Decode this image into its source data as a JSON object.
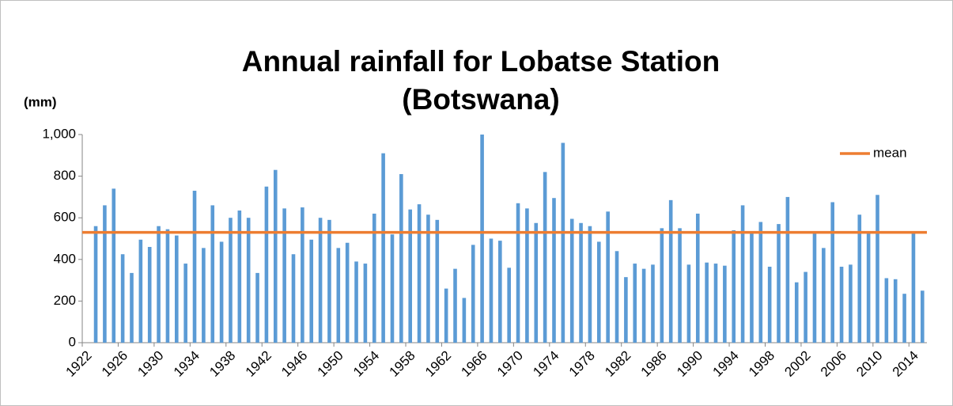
{
  "chart_data": {
    "type": "bar",
    "title": [
      "Annual rainfall for Lobatse Station",
      "(Botswana)"
    ],
    "y_label": "(mm)",
    "categories": [
      "1922",
      null,
      null,
      null,
      "1926",
      null,
      null,
      null,
      "1930",
      null,
      null,
      null,
      "1934",
      null,
      null,
      null,
      "1938",
      null,
      null,
      null,
      "1942",
      null,
      null,
      null,
      "1946",
      null,
      null,
      null,
      "1950",
      null,
      null,
      null,
      "1954",
      null,
      null,
      null,
      "1958",
      null,
      null,
      null,
      "1962",
      null,
      null,
      null,
      "1966",
      null,
      null,
      null,
      "1970",
      null,
      null,
      null,
      "1974",
      null,
      null,
      null,
      "1978",
      null,
      null,
      null,
      "1982",
      null,
      null,
      null,
      "1986",
      null,
      null,
      null,
      "1990",
      null,
      null,
      null,
      "1994",
      null,
      null,
      null,
      "1998",
      null,
      null,
      null,
      "2002",
      null,
      null,
      null,
      "2006",
      null,
      null,
      null,
      "2010",
      null,
      null,
      null,
      "2014",
      null
    ],
    "values": [
      null,
      560,
      660,
      740,
      425,
      335,
      495,
      460,
      560,
      545,
      515,
      380,
      730,
      455,
      660,
      485,
      600,
      635,
      600,
      335,
      750,
      830,
      645,
      425,
      650,
      495,
      600,
      590,
      455,
      480,
      390,
      380,
      620,
      910,
      520,
      810,
      640,
      665,
      615,
      590,
      260,
      355,
      215,
      470,
      1000,
      500,
      490,
      360,
      670,
      645,
      575,
      820,
      695,
      960,
      595,
      575,
      560,
      485,
      630,
      440,
      315,
      380,
      355,
      375,
      550,
      685,
      550,
      375,
      620,
      385,
      380,
      370,
      540,
      660,
      530,
      580,
      365,
      570,
      700,
      290,
      340,
      530,
      455,
      675,
      365,
      375,
      615,
      530,
      710,
      310,
      305,
      235,
      525,
      250
    ],
    "color": "#5b9bd5",
    "mean": {
      "name": "mean",
      "value": 530,
      "color": "#ed7d31"
    },
    "ylim": [
      0,
      1000
    ],
    "yticks": [
      0,
      200,
      400,
      600,
      800,
      {
        "value": 1000,
        "label": "1,000"
      }
    ],
    "legend": "top-right"
  }
}
